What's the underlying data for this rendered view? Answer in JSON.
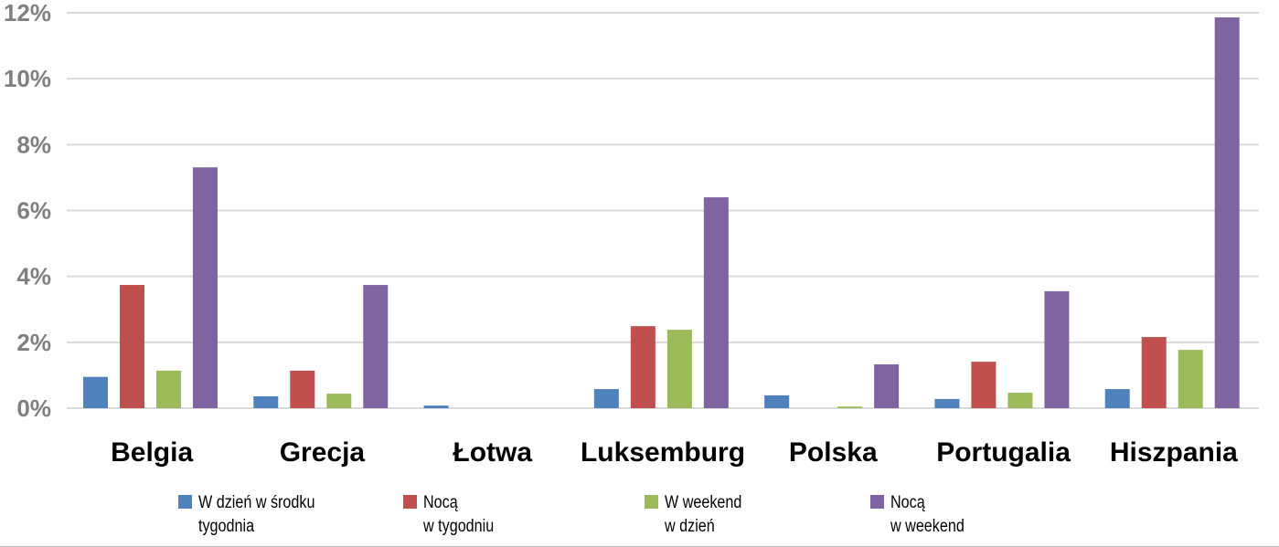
{
  "chart_data": {
    "type": "bar",
    "categories": [
      "Belgia",
      "Grecja",
      "Łotwa",
      "Luksemburg",
      "Polska",
      "Portugalia",
      "Hiszpania"
    ],
    "series": [
      {
        "name": "W dzień w środku\ntygodnia",
        "color": "#4f81bd",
        "values": [
          0.95,
          0.36,
          0.08,
          0.58,
          0.39,
          0.28,
          0.58
        ]
      },
      {
        "name": "Nocą\nw tygodniu",
        "color": "#c0504d",
        "values": [
          3.74,
          1.14,
          0,
          2.49,
          0,
          1.41,
          2.16
        ]
      },
      {
        "name": "W weekend\nw dzień",
        "color": "#9bbb59",
        "values": [
          1.14,
          0.44,
          0,
          2.38,
          0.05,
          0.47,
          1.77
        ]
      },
      {
        "name": "Nocą\nw weekend",
        "color": "#8064a2",
        "values": [
          7.31,
          3.74,
          0,
          6.4,
          1.33,
          3.55,
          11.86
        ]
      }
    ],
    "ylim": [
      0,
      12
    ],
    "yticks": [
      "0%",
      "2%",
      "4%",
      "6%",
      "8%",
      "10%",
      "12%"
    ],
    "grid": true,
    "legend": "bottom"
  }
}
